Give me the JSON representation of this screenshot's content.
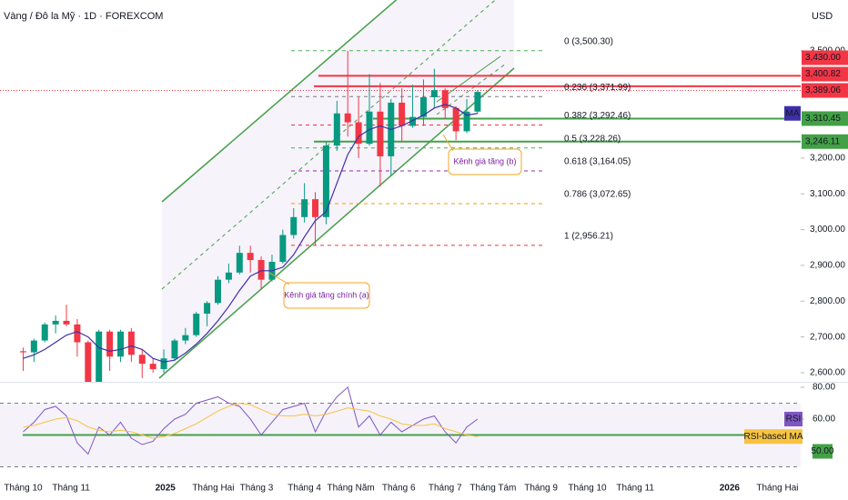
{
  "chart_data": [
    {
      "type": "candlestick",
      "title": "Vàng / Đô la Mỹ · 1D · FOREXCOM",
      "y_label": "USD",
      "open": [
        2660,
        2657,
        2690,
        2735,
        2745,
        2735,
        2685,
        2565,
        2715,
        2645,
        2715,
        2650,
        2625,
        2610,
        2640,
        2690,
        2705,
        2765,
        2795,
        2860,
        2880,
        2935,
        2915,
        2860,
        2910,
        2985,
        3035,
        3085,
        3035,
        3235,
        3325,
        3300,
        3240,
        3330,
        3205,
        3355,
        3290,
        3315,
        3370,
        3390,
        3340,
        3275,
        3330
      ],
      "high": [
        2670,
        2695,
        2740,
        2760,
        2790,
        2750,
        2690,
        2720,
        2720,
        2720,
        2725,
        2665,
        2640,
        2665,
        2695,
        2725,
        2770,
        2800,
        2870,
        2905,
        2955,
        2955,
        2925,
        2930,
        3000,
        3060,
        3130,
        3105,
        3245,
        3360,
        3500,
        3370,
        3435,
        3410,
        3365,
        3395,
        3405,
        3420,
        3450,
        3395,
        3345,
        3365,
        3390
      ],
      "low": [
        2605,
        2630,
        2685,
        2710,
        2730,
        2645,
        2540,
        2560,
        2605,
        2630,
        2630,
        2585,
        2600,
        2600,
        2635,
        2680,
        2700,
        2730,
        2790,
        2850,
        2875,
        2880,
        2835,
        2855,
        2905,
        2975,
        3020,
        2955,
        3015,
        3220,
        3260,
        3200,
        3235,
        3120,
        3150,
        3245,
        3285,
        3290,
        3340,
        3310,
        3250,
        3270,
        3325
      ],
      "close": [
        2657,
        2690,
        2735,
        2745,
        2735,
        2685,
        2565,
        2715,
        2645,
        2715,
        2650,
        2625,
        2610,
        2640,
        2690,
        2705,
        2765,
        2795,
        2860,
        2880,
        2935,
        2915,
        2860,
        2910,
        2985,
        3035,
        3085,
        3035,
        3235,
        3325,
        3300,
        3240,
        3330,
        3205,
        3355,
        3290,
        3315,
        3370,
        3390,
        3340,
        3275,
        3330,
        3385
      ],
      "up_color": "#089981",
      "down_color": "#f23645",
      "series": [
        {
          "name": "MA",
          "color": "#3f2fa8",
          "values": [
            2640,
            2650,
            2665,
            2685,
            2705,
            2715,
            2700,
            2670,
            2660,
            2665,
            2675,
            2665,
            2640,
            2630,
            2635,
            2655,
            2680,
            2710,
            2745,
            2785,
            2830,
            2870,
            2885,
            2885,
            2895,
            2930,
            2980,
            3025,
            3050,
            3130,
            3210,
            3260,
            3280,
            3290,
            3280,
            3290,
            3305,
            3320,
            3340,
            3350,
            3340,
            3320,
            3325
          ]
        }
      ],
      "xlim": [
        -2.14,
        71.86
      ],
      "xticks": [
        {
          "value": 0,
          "label": "Tháng 10"
        },
        {
          "value": 4.43,
          "label": "Tháng 11"
        },
        {
          "value": 13.14,
          "label": "2025"
        },
        {
          "value": 17.57,
          "label": "Tháng Hai"
        },
        {
          "value": 21.57,
          "label": "Tháng 3"
        },
        {
          "value": 26,
          "label": "Tháng 4"
        },
        {
          "value": 30.29,
          "label": "Tháng Năm"
        },
        {
          "value": 34.71,
          "label": "Tháng 6"
        },
        {
          "value": 39,
          "label": "Tháng 7"
        },
        {
          "value": 43.43,
          "label": "Tháng Tám"
        },
        {
          "value": 47.86,
          "label": "Tháng 9"
        },
        {
          "value": 52.14,
          "label": "Tháng 10"
        },
        {
          "value": 56.57,
          "label": "Tháng 11"
        },
        {
          "value": 65.29,
          "label": "2026"
        },
        {
          "value": 69.71,
          "label": "Tháng Hai"
        }
      ],
      "ylim": [
        2574.5,
        3642
      ],
      "yticks": [
        {
          "value": 2600,
          "label": "2,600.00"
        },
        {
          "value": 2700,
          "label": "2,700.00"
        },
        {
          "value": 2800,
          "label": "2,800.00"
        },
        {
          "value": 2900,
          "label": "2,900.00"
        },
        {
          "value": 3000,
          "label": "3,000.00"
        },
        {
          "value": 3100,
          "label": "3,100.00"
        },
        {
          "value": 3200,
          "label": "3,200.00"
        },
        {
          "value": 3500,
          "label": "3,500.00"
        }
      ],
      "fibonacci": [
        {
          "value": 3500.3,
          "label": "0 (3,500.30)",
          "color": "#4caf50"
        },
        {
          "value": 3371.99,
          "label": "0.236 (3,371.99)",
          "color": "#787b86"
        },
        {
          "value": 3292.46,
          "label": "0.382 (3,292.46)",
          "color": "#f23645"
        },
        {
          "value": 3228.26,
          "label": "0.5 (3,228.26)",
          "color": "#4caf50"
        },
        {
          "value": 3164.05,
          "label": "0.618 (3,164.05)",
          "color": "#9c27b0"
        },
        {
          "value": 3072.65,
          "label": "0.786 (3,072.65)",
          "color": "#ff9800"
        },
        {
          "value": 2956.21,
          "label": "1 (2,956.21)",
          "color": "#f23645"
        }
      ],
      "price_lines": [
        {
          "value": 3430.0,
          "label": "3,430.00",
          "color": "#f23645"
        },
        {
          "value": 3400.82,
          "label": "3,400.82",
          "color": "#f23645"
        },
        {
          "value": 3389.06,
          "label": "3,389.06",
          "color": "#f23645",
          "dotted": true
        },
        {
          "value": 3310.45,
          "label": "3,310.45",
          "color": "#43a047"
        },
        {
          "value": 3246.11,
          "label": "3,246.11",
          "color": "#43a047"
        }
      ],
      "annotations": [
        "Kênh giá tăng chính (a)",
        "Kênh giá tăng (b)"
      ]
    },
    {
      "type": "line",
      "series": [
        {
          "name": "RSI",
          "color": "#7e57c2",
          "values": [
            52,
            58,
            66,
            68,
            62,
            45,
            38,
            55,
            50,
            58,
            48,
            44,
            46,
            54,
            60,
            63,
            70,
            72,
            74,
            70,
            68,
            60,
            50,
            58,
            66,
            68,
            70,
            52,
            65,
            74,
            80,
            55,
            62,
            50,
            58,
            52,
            56,
            60,
            62,
            52,
            45,
            55,
            60
          ]
        },
        {
          "name": "RSI-based MA",
          "color": "#f7c342",
          "values": [
            55,
            56,
            58,
            60,
            61,
            59,
            55,
            53,
            52,
            53,
            52,
            50,
            48,
            49,
            51,
            54,
            57,
            61,
            65,
            68,
            70,
            69,
            66,
            63,
            62,
            62,
            63,
            62,
            63,
            65,
            67,
            66,
            65,
            62,
            60,
            57,
            56,
            56,
            57,
            54,
            52,
            50,
            49
          ]
        }
      ],
      "ylim": [
        26.3,
        83.4
      ],
      "yticks": [
        {
          "value": 80,
          "label": "80.00"
        },
        {
          "value": 60,
          "label": "60.00"
        }
      ],
      "bands": [
        30,
        70
      ],
      "level": {
        "value": 50,
        "label": "50.00",
        "color": "#43a047"
      }
    }
  ]
}
